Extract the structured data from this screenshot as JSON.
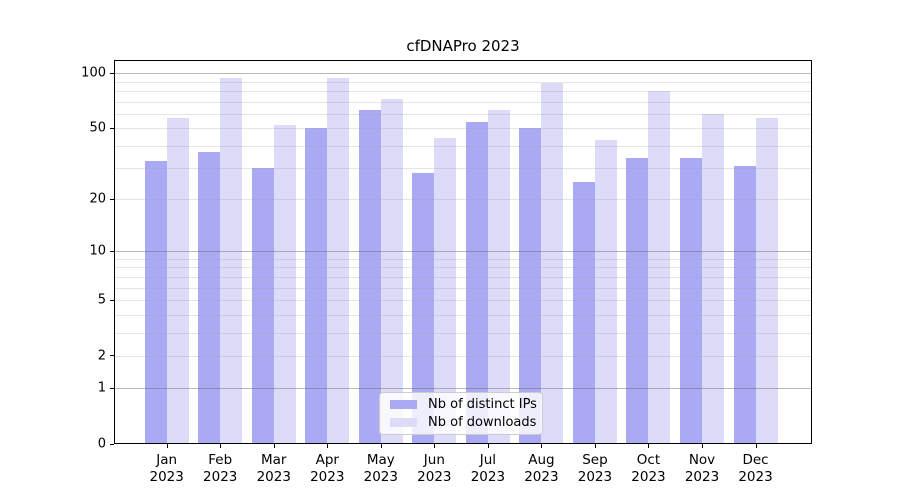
{
  "chart_data": {
    "type": "bar",
    "title": "cfDNAPro 2023",
    "categories": [
      "Jan",
      "Feb",
      "Mar",
      "Apr",
      "May",
      "Jun",
      "Jul",
      "Aug",
      "Sep",
      "Oct",
      "Nov",
      "Dec"
    ],
    "x_year": "2023",
    "series": [
      {
        "name": "Nb of distinct IPs",
        "color": "#a9a9f4",
        "values": [
          33,
          37,
          30,
          50,
          63,
          28,
          54,
          50,
          25,
          34,
          34,
          31
        ]
      },
      {
        "name": "Nb of downloads",
        "color": "#dcdcf8",
        "values": [
          57,
          94,
          52,
          94,
          72,
          44,
          63,
          88,
          43,
          80,
          60,
          57
        ]
      }
    ],
    "yscale": "log1p",
    "ylim": [
      0,
      117
    ],
    "y_tick_labels": [
      0,
      1,
      2,
      5,
      10,
      20,
      50,
      100
    ],
    "y_major_gridlines": [
      1,
      10,
      100
    ],
    "y_minor_gridlines": [
      2,
      3,
      4,
      5,
      6,
      7,
      8,
      9,
      20,
      30,
      40,
      50,
      60,
      70,
      80,
      90
    ],
    "grid": true,
    "legend_position": "lower-center",
    "axis_color": "#000000",
    "background_color": "#ffffff"
  }
}
